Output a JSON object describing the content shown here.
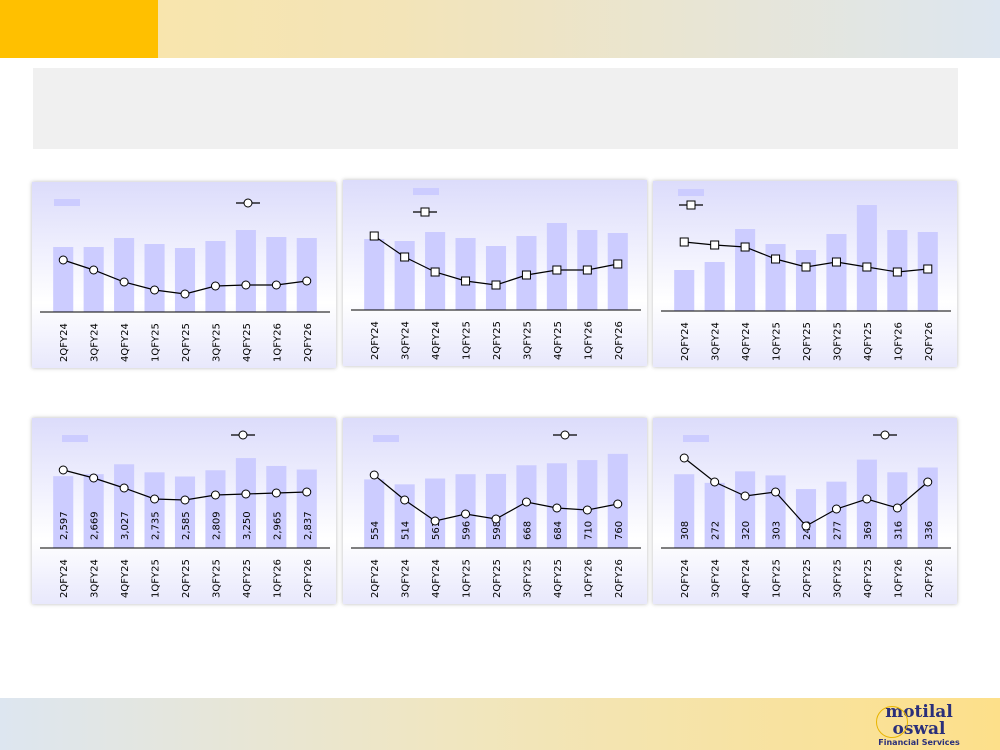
{
  "colors": {
    "bar": "#ccccff",
    "line": "#000000",
    "header": "#ffc000"
  },
  "logo": {
    "line1": "motilal",
    "line2": "oswal",
    "line3": "Financial Services"
  },
  "chart_data": [
    {
      "type": "bar+line",
      "marker": "circle",
      "categories": [
        "2QFY24",
        "3QFY24",
        "4QFY24",
        "1QFY25",
        "2QFY25",
        "3QFY25",
        "4QFY25",
        "1QFY26",
        "2QFY26"
      ],
      "values": [
        65,
        65,
        74,
        68,
        64,
        71,
        82,
        75,
        74
      ],
      "line": [
        52,
        42,
        30,
        22,
        18,
        26,
        27,
        27,
        31
      ],
      "ylim": [
        0,
        109
      ],
      "line_ylim": [
        0,
        109
      ],
      "show_labels": false
    },
    {
      "type": "bar+line",
      "marker": "square",
      "categories": [
        "2QFY24",
        "3QFY24",
        "4QFY24",
        "1QFY25",
        "2QFY25",
        "3QFY25",
        "4QFY25",
        "1QFY26",
        "2QFY26"
      ],
      "values": [
        71,
        69,
        78,
        72,
        64,
        74,
        87,
        80,
        77
      ],
      "line": [
        74,
        53,
        38,
        29,
        25,
        35,
        40,
        40,
        46
      ],
      "ylim": [
        0,
        109
      ],
      "line_ylim": [
        0,
        109
      ],
      "show_labels": false
    },
    {
      "type": "bar+line",
      "marker": "square",
      "categories": [
        "2QFY24",
        "3QFY24",
        "4QFY24",
        "1QFY25",
        "2QFY25",
        "3QFY25",
        "4QFY25",
        "1QFY26",
        "2QFY26"
      ],
      "values": [
        41,
        49,
        82,
        67,
        61,
        77,
        106,
        81,
        79
      ],
      "line": [
        69,
        66,
        64,
        52,
        44,
        49,
        44,
        39,
        42
      ],
      "ylim": [
        0,
        109
      ],
      "line_ylim": [
        0,
        109
      ],
      "show_labels": false
    },
    {
      "type": "bar+line",
      "marker": "circle",
      "categories": [
        "2QFY24",
        "3QFY24",
        "4QFY24",
        "1QFY25",
        "2QFY25",
        "3QFY25",
        "4QFY25",
        "1QFY26",
        "2QFY26"
      ],
      "values": [
        2597,
        2669,
        3027,
        2735,
        2585,
        2809,
        3250,
        2965,
        2837
      ],
      "labels": [
        "2,597",
        "2,669",
        "3,027",
        "2,735",
        "2,585",
        "2,809",
        "3,250",
        "2,965",
        "2,837"
      ],
      "line": [
        78,
        70,
        60,
        49,
        48,
        53,
        54,
        55,
        56
      ],
      "ylim": [
        0,
        3940
      ],
      "line_ylim": [
        0,
        109
      ],
      "show_labels": true
    },
    {
      "type": "bar+line",
      "marker": "circle",
      "categories": [
        "2QFY24",
        "3QFY24",
        "4QFY24",
        "1QFY25",
        "2QFY25",
        "3QFY25",
        "4QFY25",
        "1QFY26",
        "2QFY26"
      ],
      "values": [
        554,
        514,
        561,
        596,
        598,
        668,
        684,
        710,
        760
      ],
      "labels": [
        "554",
        "514",
        "561",
        "596",
        "598",
        "668",
        "684",
        "710",
        "760"
      ],
      "line": [
        73,
        48,
        27,
        34,
        29,
        46,
        40,
        38,
        44
      ],
      "ylim": [
        0,
        880
      ],
      "line_ylim": [
        0,
        109
      ],
      "show_labels": true
    },
    {
      "type": "bar+line",
      "marker": "circle",
      "categories": [
        "2QFY24",
        "3QFY24",
        "4QFY24",
        "1QFY25",
        "2QFY25",
        "3QFY25",
        "4QFY25",
        "1QFY26",
        "2QFY26"
      ],
      "values": [
        308,
        272,
        320,
        303,
        246,
        277,
        369,
        316,
        336
      ],
      "labels": [
        "308",
        "272",
        "320",
        "303",
        "246",
        "277",
        "369",
        "316",
        "336"
      ],
      "line": [
        90,
        66,
        52,
        56,
        22,
        39,
        49,
        40,
        66
      ],
      "ylim": [
        0,
        455
      ],
      "line_ylim": [
        0,
        109
      ],
      "show_labels": true
    }
  ]
}
